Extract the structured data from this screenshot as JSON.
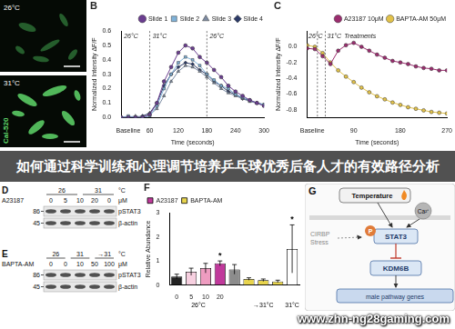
{
  "banner": "如何通过科学训练和心理调节培养乒乓球优秀后备人才的有效路径分析",
  "watermark": "www.zhn-ng28gaming.com",
  "panel_a": {
    "top_label": "26°C",
    "bottom_label": "31°C",
    "stain": "Cal-520"
  },
  "chart_data": [
    {
      "type": "line",
      "title": "B",
      "x_label": "Time (seconds)",
      "y_label": "Normalized Intensity ΔF/F",
      "x": [
        0,
        15,
        30,
        45,
        60,
        75,
        90,
        105,
        120,
        135,
        150,
        165,
        180,
        195,
        210,
        225,
        240,
        255,
        270,
        285,
        300
      ],
      "xlim": [
        0,
        300
      ],
      "xticks": [
        {
          "value": 15,
          "label": "Baseline"
        },
        60,
        120,
        180,
        240,
        300
      ],
      "ylim": [
        0,
        0.6
      ],
      "yticks": [
        {
          "value": 0,
          "label": "0.0"
        },
        0.1,
        0.2,
        0.3,
        0.4,
        0.5,
        0.6
      ],
      "grid": false,
      "legend": "upper right",
      "vlines": [
        60,
        180
      ],
      "annotations": [
        {
          "x": 4,
          "label": "26°C"
        },
        {
          "x": 64,
          "label": "31°C"
        },
        {
          "x": 184,
          "label": "26°C"
        }
      ],
      "series": [
        {
          "name": "Slide 1",
          "color": "#6a3d8f",
          "marker": "circle",
          "values": [
            0,
            0,
            0,
            0,
            0.02,
            0.1,
            0.25,
            0.35,
            0.45,
            0.5,
            0.48,
            0.42,
            0.38,
            0.33,
            0.28,
            0.22,
            0.18,
            0.15,
            0.12,
            0.1,
            0.08
          ]
        },
        {
          "name": "Slide 2",
          "color": "#7fb2d9",
          "marker": "square",
          "values": [
            0,
            0.01,
            0,
            0,
            0.01,
            0.08,
            0.2,
            0.3,
            0.38,
            0.42,
            0.4,
            0.36,
            0.3,
            0.26,
            0.22,
            0.2,
            0.16,
            0.14,
            0.12,
            0.1,
            0.09
          ]
        },
        {
          "name": "Slide 3",
          "color": "#7d8ca3",
          "marker": "triangle",
          "values": [
            0,
            0,
            0.01,
            0,
            0.02,
            0.06,
            0.15,
            0.25,
            0.32,
            0.36,
            0.35,
            0.32,
            0.28,
            0.24,
            0.2,
            0.17,
            0.15,
            0.13,
            0.11,
            0.1,
            0.08
          ]
        },
        {
          "name": "Slide 4",
          "color": "#2b3a67",
          "marker": "diamond",
          "values": [
            0,
            0,
            0,
            0.01,
            0.03,
            0.1,
            0.22,
            0.3,
            0.35,
            0.38,
            0.37,
            0.33,
            0.3,
            0.25,
            0.22,
            0.18,
            0.16,
            0.13,
            0.12,
            0.1,
            0.09
          ]
        }
      ]
    },
    {
      "type": "line",
      "title": "C",
      "x_label": "Time (seconds)",
      "y_label": "Normalized Intensity ΔF/F",
      "x": [
        0,
        15,
        30,
        45,
        60,
        75,
        90,
        105,
        120,
        135,
        150,
        165,
        180,
        195,
        210,
        225,
        240,
        255,
        270
      ],
      "xlim": [
        0,
        270
      ],
      "xticks": [
        {
          "value": 10,
          "label": "Baseline"
        },
        90,
        180,
        270
      ],
      "ylim": [
        -0.9,
        0.2
      ],
      "yticks": [
        {
          "value": 0,
          "label": "0.0"
        },
        -0.2,
        -0.4,
        -0.6,
        -0.8
      ],
      "grid": false,
      "legend": "upper right",
      "vlines": [
        20,
        35
      ],
      "annotations": [
        {
          "x": 1,
          "label": "26°C"
        },
        {
          "x": 37,
          "label": "31°C"
        },
        {
          "x": 70,
          "label": "Treatments"
        }
      ],
      "series": [
        {
          "name": "A23187 10μM",
          "color": "#9b2d6f",
          "marker": "circle",
          "values": [
            -0.02,
            -0.03,
            -0.12,
            -0.22,
            -0.05,
            0.02,
            0.05,
            0,
            -0.05,
            -0.1,
            -0.14,
            -0.18,
            -0.2,
            -0.22,
            -0.25,
            -0.27,
            -0.28,
            -0.3,
            -0.3
          ]
        },
        {
          "name": "BAPTA-AM 50μM",
          "color": "#e2c24a",
          "marker": "circle",
          "values": [
            0.02,
            0,
            -0.08,
            -0.2,
            -0.3,
            -0.38,
            -0.45,
            -0.52,
            -0.58,
            -0.63,
            -0.67,
            -0.71,
            -0.74,
            -0.77,
            -0.79,
            -0.81,
            -0.83,
            -0.84,
            -0.85
          ]
        }
      ]
    },
    {
      "type": "bar",
      "title": "F",
      "y_label": "Relative Abundance",
      "categories": [
        "0",
        "5",
        "10",
        "20",
        null,
        null,
        null,
        null,
        null
      ],
      "ylim": [
        0,
        3
      ],
      "yticks": [
        0,
        1,
        2,
        3
      ],
      "grid": false,
      "legend": "upper left",
      "annotations": [
        {
          "x": 1.5,
          "label": "26°C"
        },
        {
          "x": 6,
          "label": "→31°C"
        },
        {
          "x": 8,
          "label": "31°C"
        }
      ],
      "series": [
        {
          "name": "A23187",
          "color": "#c0399b",
          "colors": [
            "#222222",
            "#f7d0e0",
            "#ee9cc0",
            "#c0399b",
            null,
            null,
            null,
            null,
            null
          ],
          "values": [
            0.35,
            0.55,
            0.7,
            0.9,
            null,
            null,
            null,
            null,
            null
          ],
          "errors": [
            0.1,
            0.15,
            0.2,
            0.1,
            null,
            null,
            null,
            null,
            null
          ],
          "stars": [
            null,
            null,
            null,
            "*",
            null,
            null,
            null,
            null,
            null
          ]
        },
        {
          "name": "BAPTA-AM",
          "color": "#e8d44d",
          "colors": [
            null,
            null,
            null,
            null,
            "#8c8c8c",
            "#e8d44d",
            "#e8d44d",
            "#e8d44d",
            "#ffffff"
          ],
          "values": [
            null,
            null,
            null,
            null,
            0.65,
            0.25,
            0.2,
            0.15,
            1.5
          ],
          "errors": [
            null,
            null,
            null,
            null,
            0.2,
            0.05,
            0.05,
            0.05,
            1.0
          ],
          "stars": [
            null,
            null,
            null,
            null,
            null,
            null,
            null,
            null,
            "*"
          ]
        }
      ]
    }
  ],
  "blot_d": {
    "label": "D",
    "treatment": "A23187",
    "temperatures": [
      26,
      31
    ],
    "temperature_unit": "°C",
    "doses": [
      0,
      5,
      10,
      20,
      0
    ],
    "dose_unit": "μM",
    "bands": [
      {
        "name": "pSTAT3",
        "mw": 86
      },
      {
        "name": "β-actin",
        "mw": 45
      }
    ]
  },
  "blot_e": {
    "label": "E",
    "treatment": "BAPTA-AM",
    "temperatures": [
      "26",
      "31",
      "→31"
    ],
    "temperature_unit": "°C",
    "doses": [
      0,
      0,
      10,
      50,
      100
    ],
    "dose_unit": "μM",
    "bands": [
      {
        "name": "pSTAT3",
        "mw": 86
      },
      {
        "name": "β-actin",
        "mw": 45
      }
    ]
  },
  "diagram_g": {
    "label": "G",
    "temperature": "Temperature",
    "calcium": "Ca²⁺",
    "stress": [
      "CIRBP",
      "Stress"
    ],
    "phospho": "P",
    "stat3": "STAT3",
    "kdm6b": "KDM6B",
    "genes": "male pathway genes"
  }
}
